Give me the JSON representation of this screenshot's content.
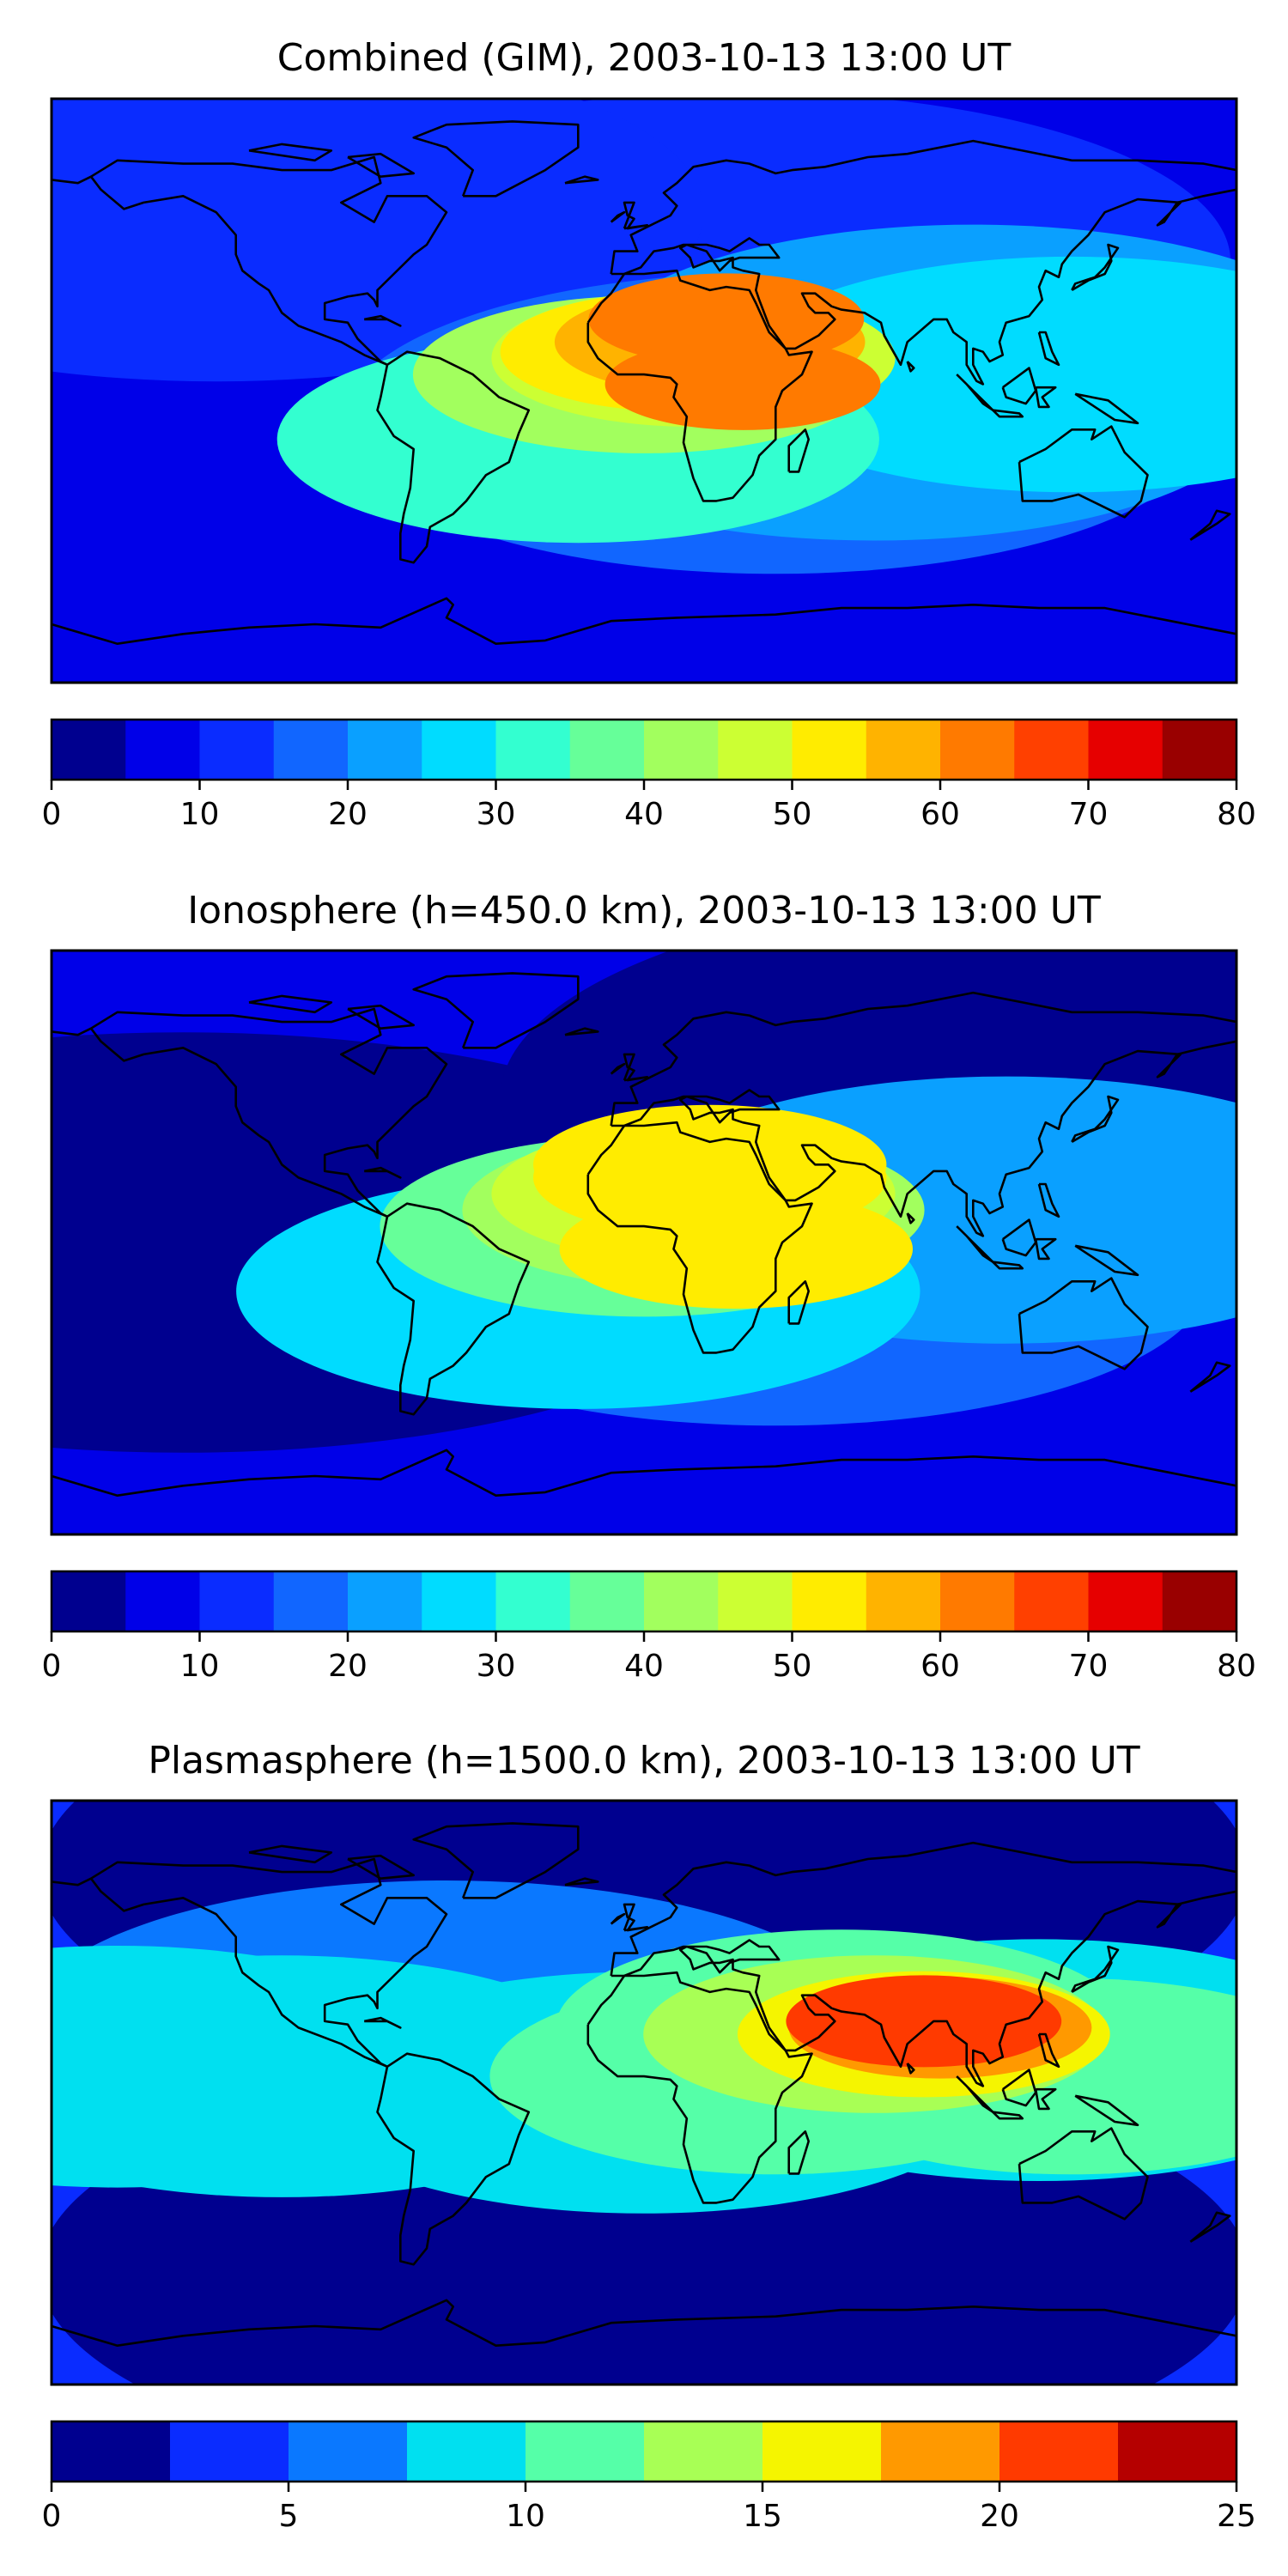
{
  "panels": [
    {
      "title": "Combined (GIM), 2003-10-13 13:00 UT",
      "colorbar": {
        "vmin": 0,
        "vmax": 80,
        "step": 5,
        "ticks": [
          "0",
          "10",
          "20",
          "30",
          "40",
          "50",
          "60",
          "70",
          "80"
        ],
        "colors": [
          "#00008f",
          "#0000e8",
          "#0a2cff",
          "#1166ff",
          "#0aa0ff",
          "#00dcff",
          "#33ffd0",
          "#66ff99",
          "#a2ff5e",
          "#ccff33",
          "#ffec00",
          "#ffb300",
          "#ff7a00",
          "#ff4000",
          "#e60000",
          "#990000"
        ]
      },
      "field": {
        "background_level": 1,
        "blobs": [
          {
            "lon": 30,
            "lat": 40,
            "level": 2
          },
          {
            "lon": -130,
            "lat": 55,
            "level": 2
          },
          {
            "lon": 40,
            "lat": -10,
            "level": 3
          },
          {
            "lon": 70,
            "lat": -5,
            "level": 4
          },
          {
            "lon": 100,
            "lat": 10,
            "level": 4
          },
          {
            "lon": 130,
            "lat": 5,
            "level": 5
          },
          {
            "lon": -20,
            "lat": -15,
            "level": 6
          },
          {
            "lon": 0,
            "lat": 5,
            "level": 8
          },
          {
            "lon": 15,
            "lat": 10,
            "level": 9
          },
          {
            "lon": 10,
            "lat": 12,
            "level": 10
          },
          {
            "lon": 20,
            "lat": 15,
            "level": 11
          },
          {
            "lon": 25,
            "lat": 22,
            "level": 12
          },
          {
            "lon": 30,
            "lat": 2,
            "level": 12
          }
        ]
      }
    },
    {
      "title": "Ionosphere  (h=450.0 km), 2003-10-13 13:00 UT",
      "colorbar": {
        "vmin": 0,
        "vmax": 80,
        "step": 5,
        "ticks": [
          "0",
          "10",
          "20",
          "30",
          "40",
          "50",
          "60",
          "70",
          "80"
        ],
        "colors": [
          "#00008f",
          "#0000e8",
          "#0a2cff",
          "#1166ff",
          "#0aa0ff",
          "#00dcff",
          "#33ffd0",
          "#66ff99",
          "#a2ff5e",
          "#ccff33",
          "#ffec00",
          "#ffb300",
          "#ff7a00",
          "#ff4000",
          "#e60000",
          "#990000"
        ]
      },
      "field": {
        "background_level": 1,
        "blobs": [
          {
            "lon": -140,
            "lat": 0,
            "level": 0
          },
          {
            "lon": 140,
            "lat": 45,
            "level": 0
          },
          {
            "lon": 40,
            "lat": -10,
            "level": 3
          },
          {
            "lon": 110,
            "lat": 10,
            "level": 4
          },
          {
            "lon": -20,
            "lat": -15,
            "level": 5
          },
          {
            "lon": 0,
            "lat": 5,
            "level": 7
          },
          {
            "lon": 15,
            "lat": 10,
            "level": 8
          },
          {
            "lon": 15,
            "lat": 15,
            "level": 9
          },
          {
            "lon": 20,
            "lat": 20,
            "level": 10
          },
          {
            "lon": 28,
            "lat": -2,
            "level": 10
          },
          {
            "lon": 20,
            "lat": 24,
            "level": 10
          }
        ]
      }
    },
    {
      "title": "Plasmasphere (h=1500.0 km), 2003-10-13 13:00 UT",
      "colorbar": {
        "vmin": 0,
        "vmax": 25,
        "step": 2.5,
        "ticks": [
          "0",
          "5",
          "10",
          "15",
          "20",
          "25"
        ],
        "colors": [
          "#00008f",
          "#0a2cff",
          "#0a78ff",
          "#00e0f0",
          "#55ffa8",
          "#a8ff55",
          "#f5f500",
          "#ff9900",
          "#ff3a00",
          "#b50000"
        ]
      },
      "field": {
        "background_level": 1,
        "blobs": [
          {
            "lon": 0,
            "lat": 68,
            "level": 0
          },
          {
            "lon": 0,
            "lat": -55,
            "level": 0
          },
          {
            "lon": -60,
            "lat": 20,
            "level": 2
          },
          {
            "lon": 120,
            "lat": 10,
            "level": 3
          },
          {
            "lon": -160,
            "lat": 8,
            "level": 3
          },
          {
            "lon": -110,
            "lat": 5,
            "level": 3
          },
          {
            "lon": 0,
            "lat": 0,
            "level": 3
          },
          {
            "lon": 60,
            "lat": 20,
            "level": 4
          },
          {
            "lon": 130,
            "lat": 5,
            "level": 4
          },
          {
            "lon": 40,
            "lat": 5,
            "level": 4
          },
          {
            "lon": 70,
            "lat": 18,
            "level": 5
          },
          {
            "lon": 85,
            "lat": 18,
            "level": 6
          },
          {
            "lon": 90,
            "lat": 20,
            "level": 7
          },
          {
            "lon": 85,
            "lat": 22,
            "level": 8
          }
        ]
      }
    }
  ],
  "map_style": {
    "coastline_color": "#000000",
    "frame_color": "#000000"
  }
}
